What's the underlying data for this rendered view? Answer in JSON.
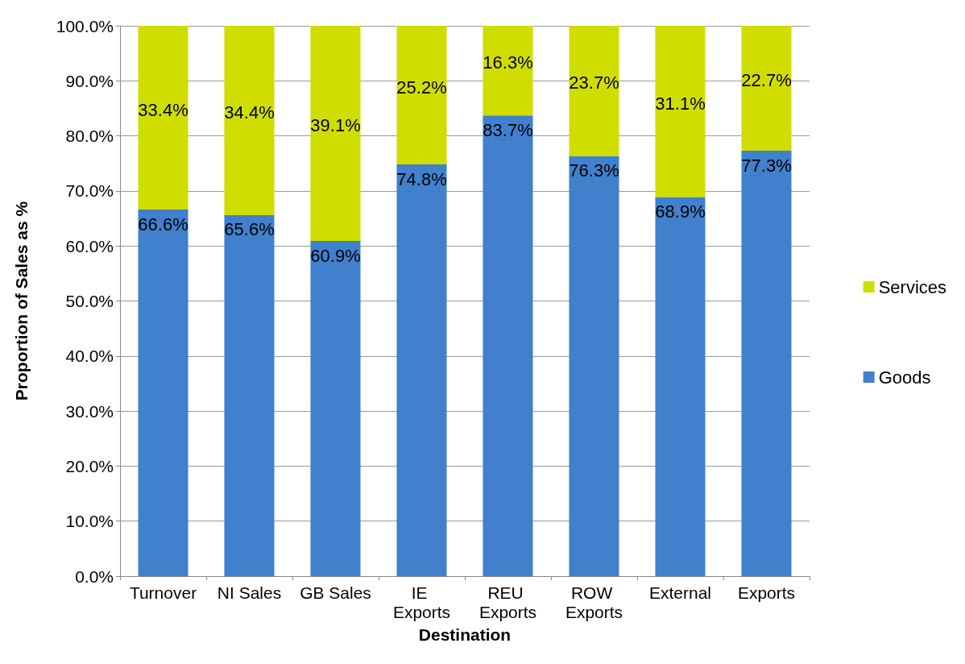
{
  "chart_data": {
    "type": "bar",
    "stacked": true,
    "xlabel": "Destination",
    "ylabel": "Proportion of Sales as %",
    "categories": [
      "Turnover",
      "NI Sales",
      "GB Sales",
      "IE Exports",
      "REU Exports",
      "ROW Exports",
      "External",
      "Exports"
    ],
    "series": [
      {
        "name": "Goods",
        "color": "#4180cc",
        "values": [
          66.6,
          65.6,
          60.9,
          74.8,
          83.7,
          76.3,
          68.9,
          77.3
        ],
        "value_labels": [
          "66.6%",
          "65.6%",
          "60.9%",
          "74.8%",
          "83.7%",
          "76.3%",
          "68.9%",
          "77.3%"
        ]
      },
      {
        "name": "Services",
        "color": "#d0dd00",
        "values": [
          33.4,
          34.4,
          39.1,
          25.2,
          16.3,
          23.7,
          31.1,
          22.7
        ],
        "value_labels": [
          "33.4%",
          "34.4%",
          "39.1%",
          "25.2%",
          "16.3%",
          "23.7%",
          "31.1%",
          "22.7%"
        ]
      }
    ],
    "ylim": [
      0,
      100
    ],
    "yticks": [
      {
        "value": 0,
        "label": "0.0%"
      },
      {
        "value": 10,
        "label": "10.0%"
      },
      {
        "value": 20,
        "label": "20.0%"
      },
      {
        "value": 30,
        "label": "30.0%"
      },
      {
        "value": 40,
        "label": "40.0%"
      },
      {
        "value": 50,
        "label": "50.0%"
      },
      {
        "value": 60,
        "label": "60.0%"
      },
      {
        "value": 70,
        "label": "70.0%"
      },
      {
        "value": 80,
        "label": "80.0%"
      },
      {
        "value": 90,
        "label": "90.0%"
      },
      {
        "value": 100,
        "label": "100.0%"
      }
    ],
    "grid": "y",
    "legend": "right"
  }
}
